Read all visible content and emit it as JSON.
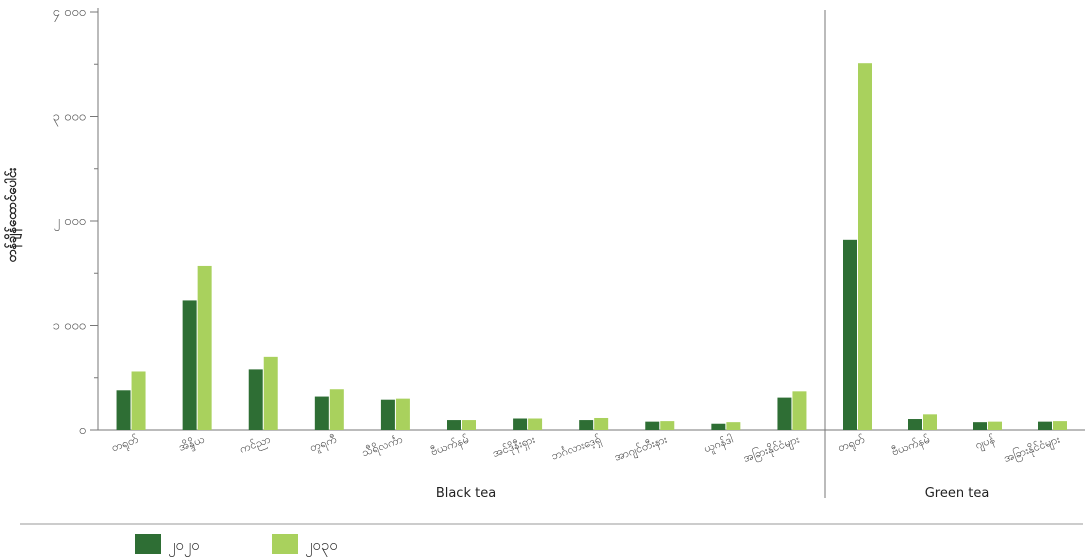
{
  "chart_data": {
    "type": "bar",
    "ylabel": "တန်ချိန်ထောင်ပေါင်း",
    "ylim": [
      0,
      4000
    ],
    "y_ticks": [
      {
        "value": 0,
        "label": "၀"
      },
      {
        "value": 1000,
        "label": "၁ ၀၀၀"
      },
      {
        "value": 2000,
        "label": "၂ ၀၀၀"
      },
      {
        "value": 3000,
        "label": "၃ ၀၀၀"
      },
      {
        "value": 4000,
        "label": "၄ ၀၀၀"
      }
    ],
    "groups": [
      {
        "label": "Black tea",
        "categories": [
          "တရုတ်",
          "အိန္ဒိယ",
          "ကင်ညာ",
          "တူရကီ",
          "သီရိလင်္ကာ",
          "ဗီယက်နမ်",
          "အင်ဒိုနီးရှား",
          "ဘင်္ဂလားဒေ့ရှ်",
          "အာဂျင်တီးနား",
          "ယူဂန်ဒါ",
          "အခြားနိုင်ငံများ"
        ]
      },
      {
        "label": "Green tea",
        "categories": [
          "တရုတ်",
          "ဗီယက်နမ်",
          "ဂျပန်",
          "အခြားနိုင်ငံများ"
        ]
      }
    ],
    "series": [
      {
        "name": "၂၀၂၀",
        "color": "#2e6e34",
        "values": [
          380,
          1240,
          580,
          320,
          290,
          95,
          110,
          95,
          80,
          60,
          310,
          1820,
          105,
          75,
          80
        ]
      },
      {
        "name": "၂၀၃၀",
        "color": "#a9d15d",
        "values": [
          560,
          1570,
          700,
          390,
          300,
          95,
          110,
          115,
          85,
          75,
          370,
          3510,
          150,
          80,
          85
        ]
      }
    ],
    "legend_position": "bottom-left",
    "grid": false
  }
}
